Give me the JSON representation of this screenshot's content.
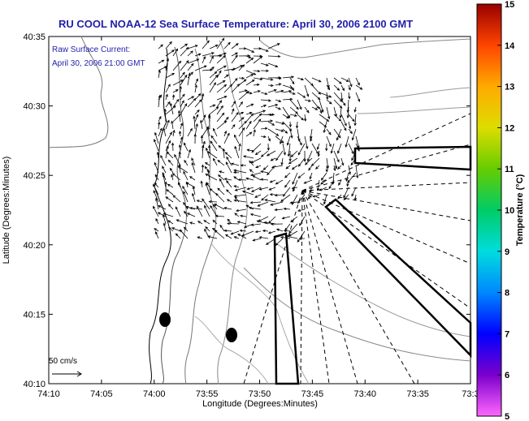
{
  "title": "RU COOL  NOAA-12  Sea Surface Temperature:  April 30, 2006 2100 GMT",
  "annotation": {
    "line1": "Raw Surface Current:",
    "line2": "April 30, 2006 21:00 GMT"
  },
  "scale_label": "50 cm/s",
  "x_axis": {
    "label": "Longitude (Degrees:Minutes)",
    "ticks": [
      "74:10",
      "74:05",
      "74:00",
      "73:55",
      "73:50",
      "73:45",
      "73:40",
      "73:35",
      "73:3"
    ]
  },
  "y_axis": {
    "label": "Latitude (Degrees:Minutes)",
    "ticks": [
      "40:10",
      "40:15",
      "40:20",
      "40:25",
      "40:30",
      "40:35"
    ]
  },
  "colorbar": {
    "label": "Temperature (°C)",
    "ticks": [
      "5",
      "6",
      "7",
      "8",
      "9",
      "10",
      "11",
      "12",
      "13",
      "14",
      "15"
    ],
    "colors": [
      "#ff66ff",
      "#7a00cc",
      "#0000ff",
      "#0088ff",
      "#00dddd",
      "#00cc66",
      "#66cc00",
      "#dddd00",
      "#ffaa00",
      "#ff4400",
      "#990000"
    ]
  }
}
